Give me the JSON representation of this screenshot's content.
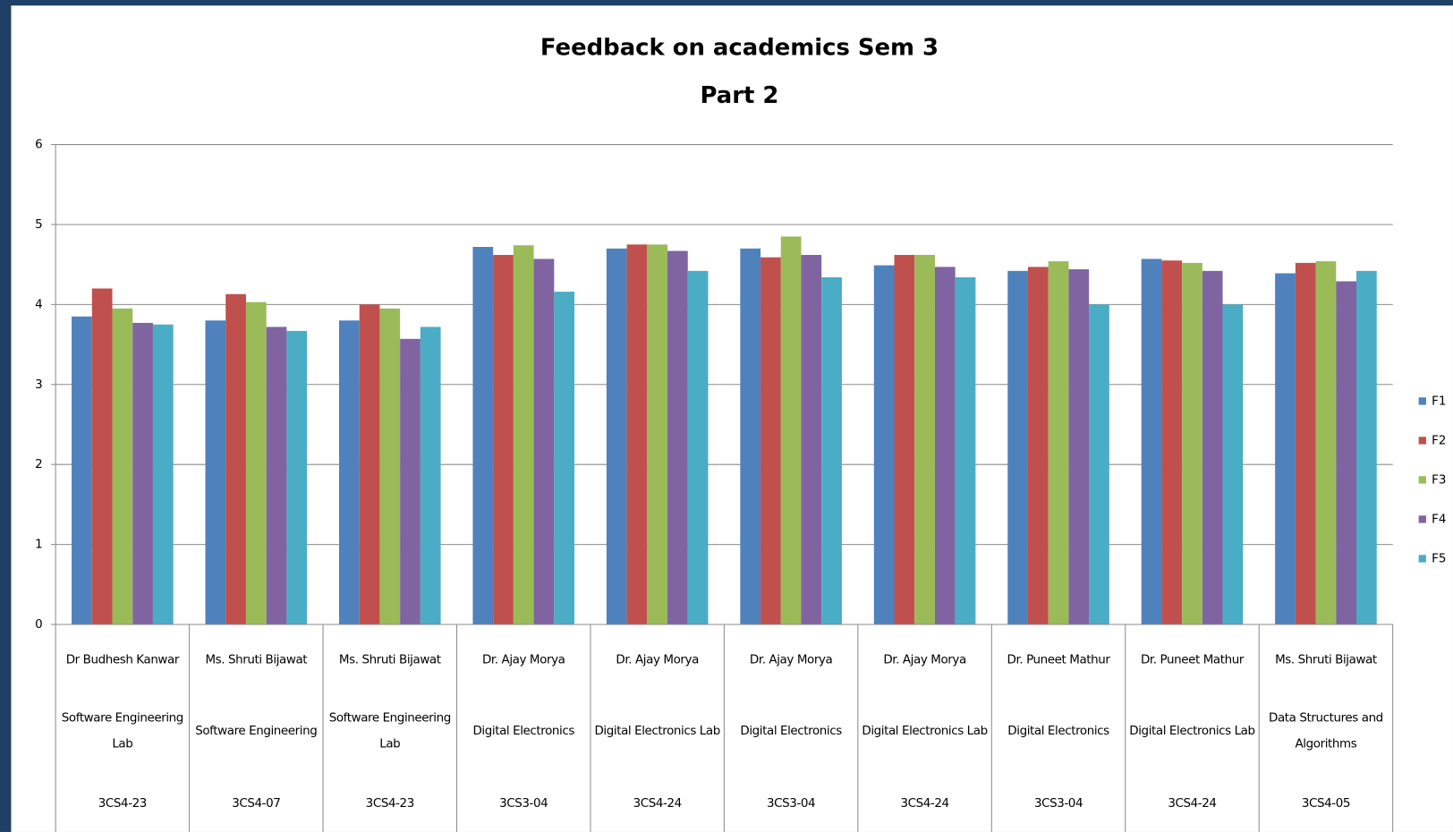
{
  "chart_data": {
    "type": "bar",
    "title": "Feedback on academics Sem 3",
    "subtitle": "Part 2",
    "categories": [
      [
        "Dr Budhesh Kanwar",
        "Software Engineering Lab",
        "3CS4-23"
      ],
      [
        "Ms. Shruti Bijawat",
        "Software Engineering",
        "3CS4-07"
      ],
      [
        "Ms. Shruti Bijawat",
        "Software Engineering Lab",
        "3CS4-23"
      ],
      [
        "Dr. Ajay Morya",
        "Digital Electronics",
        "3CS3-04"
      ],
      [
        "Dr. Ajay Morya",
        "Digital Electronics Lab",
        "3CS4-24"
      ],
      [
        "Dr. Ajay Morya",
        "Digital Electronics",
        "3CS3-04"
      ],
      [
        "Dr. Ajay Morya",
        "Digital Electronics Lab",
        "3CS4-24"
      ],
      [
        "Dr. Puneet Mathur",
        "Digital Electronics",
        "3CS3-04"
      ],
      [
        "Dr. Puneet Mathur",
        "Digital Electronics Lab",
        "3CS4-24"
      ],
      [
        "Ms. Shruti Bijawat",
        "Data Structures and Algorithms",
        "3CS4-05"
      ]
    ],
    "series": [
      {
        "name": "F1",
        "color": "#4f81bd",
        "values": [
          3.85,
          3.8,
          3.8,
          4.72,
          4.7,
          4.7,
          4.49,
          4.42,
          4.57,
          4.39
        ]
      },
      {
        "name": "F2",
        "color": "#c0504d",
        "values": [
          4.2,
          4.13,
          4.0,
          4.62,
          4.75,
          4.59,
          4.62,
          4.47,
          4.55,
          4.52
        ]
      },
      {
        "name": "F3",
        "color": "#9bbb59",
        "values": [
          3.95,
          4.03,
          3.95,
          4.74,
          4.75,
          4.85,
          4.62,
          4.54,
          4.52,
          4.54
        ]
      },
      {
        "name": "F4",
        "color": "#8064a2",
        "values": [
          3.77,
          3.72,
          3.57,
          4.57,
          4.67,
          4.62,
          4.47,
          4.44,
          4.42,
          4.29
        ]
      },
      {
        "name": "F5",
        "color": "#4bacc6",
        "values": [
          3.75,
          3.67,
          3.72,
          4.16,
          4.42,
          4.34,
          4.34,
          4.0,
          4.0,
          4.42
        ]
      }
    ],
    "ylim": [
      0,
      6
    ],
    "yticks": [
      0,
      1,
      2,
      3,
      4,
      5,
      6
    ],
    "grid": true,
    "legend": "right"
  }
}
